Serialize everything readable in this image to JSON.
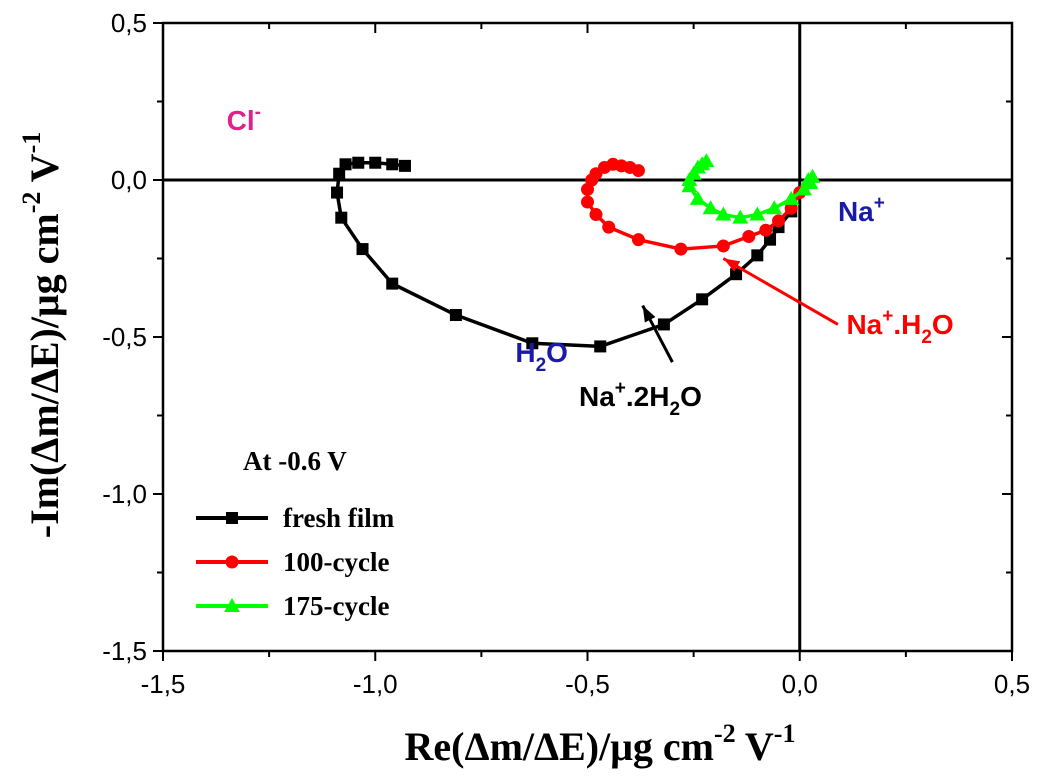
{
  "chart_data": {
    "type": "scatter",
    "xlabel": "Re(Δm/ΔE)/μg cm",
    "xlabel_sup1": "-2",
    "xlabel_mid": " V",
    "xlabel_sup2": "-1",
    "ylabel": "-Im(Δm/ΔE)/μg cm",
    "ylabel_sup1": "-2",
    "ylabel_mid": " V",
    "ylabel_sup2": "-1",
    "xlim": [
      -1.5,
      0.5
    ],
    "ylim": [
      -1.5,
      0.5
    ],
    "xticks": [
      -1.5,
      -1.0,
      -0.5,
      0.0,
      0.5
    ],
    "xtick_labels": [
      "-1,5",
      "-1,0",
      "-0,5",
      "0,0",
      "0,5"
    ],
    "yticks": [
      -1.5,
      -1.0,
      -0.5,
      0.0,
      0.5
    ],
    "ytick_labels": [
      "-1,5",
      "-1,0",
      "-0,5",
      "0,0",
      "0,5"
    ],
    "reference_lines": {
      "x0": true,
      "y0": true
    },
    "legend_title": "At -0.6 V",
    "legend_position": "bottom-left",
    "series": [
      {
        "name": "fresh film",
        "color": "#000000",
        "marker": "square",
        "x": [
          -0.02,
          -0.05,
          -0.07,
          -0.1,
          -0.15,
          -0.23,
          -0.32,
          -0.47,
          -0.63,
          -0.81,
          -0.96,
          -1.03,
          -1.08,
          -1.09,
          -1.085,
          -1.07,
          -1.04,
          -1.0,
          -0.96,
          -0.93
        ],
        "y": [
          -0.1,
          -0.15,
          -0.19,
          -0.24,
          -0.3,
          -0.38,
          -0.46,
          -0.53,
          -0.52,
          -0.43,
          -0.33,
          -0.22,
          -0.12,
          -0.04,
          0.02,
          0.05,
          0.055,
          0.055,
          0.05,
          0.045
        ]
      },
      {
        "name": "100-cycle",
        "color": "#ff0000",
        "marker": "circle",
        "x": [
          0.0,
          -0.02,
          -0.05,
          -0.08,
          -0.12,
          -0.18,
          -0.28,
          -0.38,
          -0.45,
          -0.48,
          -0.5,
          -0.5,
          -0.49,
          -0.48,
          -0.46,
          -0.44,
          -0.42,
          -0.4,
          -0.38
        ],
        "y": [
          -0.04,
          -0.09,
          -0.13,
          -0.16,
          -0.18,
          -0.21,
          -0.22,
          -0.19,
          -0.15,
          -0.11,
          -0.07,
          -0.03,
          0.0,
          0.02,
          0.04,
          0.05,
          0.045,
          0.04,
          0.03
        ],
        "y_note": ""
      },
      {
        "name": "175-cycle",
        "color": "#00ff00",
        "marker": "triangle",
        "x": [
          0.02,
          0.03,
          0.025,
          0.01,
          -0.02,
          -0.06,
          -0.1,
          -0.14,
          -0.18,
          -0.21,
          -0.24,
          -0.26,
          -0.26,
          -0.25,
          -0.24,
          -0.23,
          -0.22
        ],
        "y": [
          0.0,
          0.01,
          -0.01,
          -0.03,
          -0.06,
          -0.09,
          -0.11,
          -0.12,
          -0.11,
          -0.09,
          -0.06,
          -0.02,
          0.0,
          0.02,
          0.04,
          0.05,
          0.06
        ]
      }
    ],
    "annotations": [
      {
        "text": "Cl",
        "sup": "-",
        "color": "#e0218a",
        "x": -1.35,
        "y": 0.16
      },
      {
        "text": "Na",
        "sup": "+",
        "color": "#1a1aa8",
        "x": 0.09,
        "y": -0.13
      },
      {
        "text": "H",
        "sub": "2",
        "text2": "O",
        "color": "#1a1aa8",
        "x": -0.67,
        "y": -0.58
      },
      {
        "text": "Na",
        "sup": "+",
        "text2": ".2H",
        "sub": "2",
        "text3": "O",
        "color": "#000000",
        "x": -0.52,
        "y": -0.72
      },
      {
        "text": "Na",
        "sup": "+",
        "text2": ".H",
        "sub": "2",
        "text3": "O",
        "color": "#ff0000",
        "x": 0.11,
        "y": -0.49
      }
    ],
    "arrows": [
      {
        "color": "#000000",
        "from": [
          -0.3,
          -0.58
        ],
        "to": [
          -0.37,
          -0.4
        ]
      },
      {
        "color": "#ff0000",
        "from": [
          0.09,
          -0.46
        ],
        "to": [
          -0.18,
          -0.25
        ]
      }
    ]
  }
}
